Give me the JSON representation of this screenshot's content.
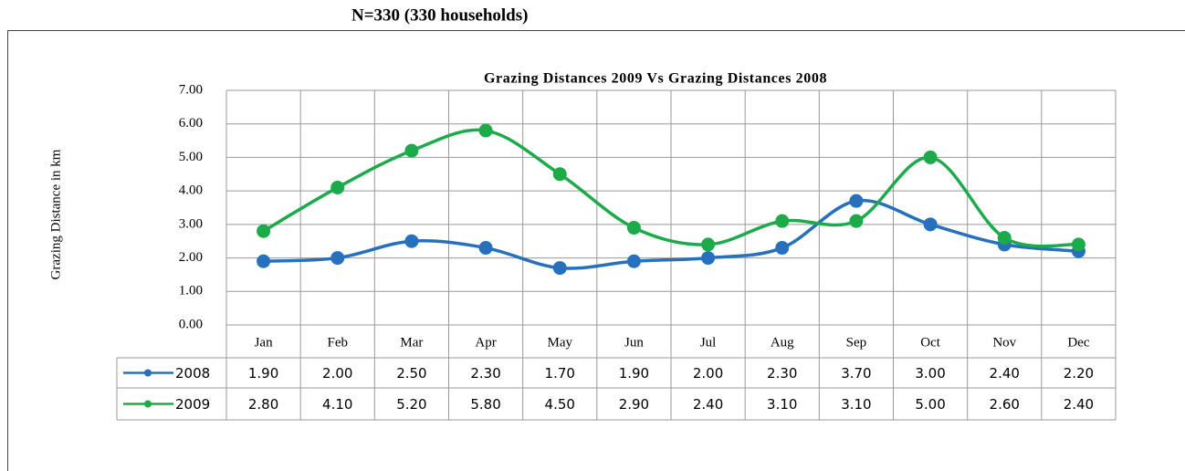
{
  "heading": "N=330  (330 households)",
  "chart_data": {
    "type": "line",
    "title": "Grazing  Distances 2009 Vs Grazing Distances 2008",
    "y_label": "Grazing Distance in km",
    "categories": [
      "Jan",
      "Feb",
      "Mar",
      "Apr",
      "May",
      "Jun",
      "Jul",
      "Aug",
      "Sep",
      "Oct",
      "Nov",
      "Dec"
    ],
    "series": [
      {
        "name": "2008",
        "color": "#2670be",
        "values": [
          1.9,
          2.0,
          2.5,
          2.3,
          1.7,
          1.9,
          2.0,
          2.3,
          3.7,
          3.0,
          2.4,
          2.2
        ],
        "value_labels": [
          "1.90",
          "2.00",
          "2.50",
          "2.30",
          "1.70",
          "1.90",
          "2.00",
          "2.30",
          "3.70",
          "3.00",
          "2.40",
          "2.20"
        ]
      },
      {
        "name": "2009",
        "color": "#1daa4a",
        "values": [
          2.8,
          4.1,
          5.2,
          5.8,
          4.5,
          2.9,
          2.4,
          3.1,
          3.1,
          5.0,
          2.6,
          2.4
        ],
        "value_labels": [
          "2.80",
          "4.10",
          "5.20",
          "5.80",
          "4.50",
          "2.90",
          "2.40",
          "3.10",
          "3.10",
          "5.00",
          "2.60",
          "2.40"
        ]
      }
    ],
    "ylim": [
      0,
      7
    ],
    "yticks": [
      {
        "value": 0,
        "label": "0.00"
      },
      {
        "value": 1,
        "label": "1.00"
      },
      {
        "value": 2,
        "label": "2.00"
      },
      {
        "value": 3,
        "label": "3.00"
      },
      {
        "value": 4,
        "label": "4.00"
      },
      {
        "value": 5,
        "label": "5.00"
      },
      {
        "value": 6,
        "label": "6.00"
      },
      {
        "value": 7,
        "label": "7.00"
      }
    ],
    "grid": true,
    "smooth": true
  }
}
